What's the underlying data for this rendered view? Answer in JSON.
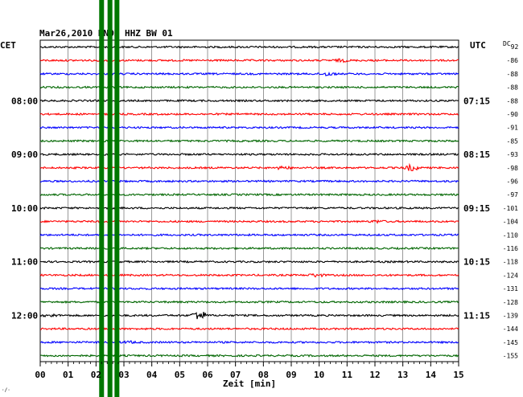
{
  "header": {
    "title": "Mar26,2010   RNON HHZ BW 01",
    "left_tz": "CET",
    "right_tz": "UTC",
    "dc_label": "DC",
    "dc_first": "92"
  },
  "xaxis": {
    "label": "Zeit [min]",
    "ticks": [
      "00",
      "01",
      "02",
      "03",
      "04",
      "05",
      "06",
      "07",
      "08",
      "09",
      "10",
      "11",
      "12",
      "13",
      "14",
      "15"
    ]
  },
  "colors": [
    "#000000",
    "#ff0000",
    "#0000ff",
    "#006600"
  ],
  "marker_color": "#007700",
  "corner_mark": "·/·",
  "chart_data": {
    "type": "line",
    "title": "Mar26,2010   RNON HHZ BW 01",
    "xlabel": "Zeit [min]",
    "xlim": [
      0,
      15
    ],
    "trace_count": 24,
    "trace_duration_min": 15,
    "left_labels": [
      {
        "row": 4,
        "text": "08:00"
      },
      {
        "row": 8,
        "text": "09:00"
      },
      {
        "row": 12,
        "text": "10:00"
      },
      {
        "row": 16,
        "text": "11:00"
      },
      {
        "row": 20,
        "text": "12:00"
      }
    ],
    "right_labels": [
      {
        "row": 4,
        "text": "07:15"
      },
      {
        "row": 8,
        "text": "08:15"
      },
      {
        "row": 12,
        "text": "09:15"
      },
      {
        "row": 16,
        "text": "10:15"
      },
      {
        "row": 20,
        "text": "11:15"
      }
    ],
    "dc_offsets": [
      "-86",
      "-88",
      "-88",
      "-88",
      "-90",
      "-91",
      "-85",
      "-93",
      "-98",
      "-96",
      "-97",
      "-101",
      "-104",
      "-110",
      "-116",
      "-118",
      "-124",
      "-131",
      "-128",
      "-139",
      "-144",
      "-145",
      "-155"
    ],
    "events": [
      {
        "row": 1,
        "minute": 10.8,
        "amp": 0.35
      },
      {
        "row": 2,
        "minute": 10.3,
        "amp": 0.55
      },
      {
        "row": 9,
        "minute": 8.7,
        "amp": 0.4
      },
      {
        "row": 9,
        "minute": 13.3,
        "amp": 0.9
      },
      {
        "row": 13,
        "minute": 12.1,
        "amp": 0.3
      },
      {
        "row": 17,
        "minute": 9.9,
        "amp": 0.45
      },
      {
        "row": 20,
        "minute": 5.7,
        "amp": 1.6
      },
      {
        "row": 20,
        "minute": 0.4,
        "amp": 0.35
      },
      {
        "row": 22,
        "minute": 3.2,
        "amp": 0.25
      }
    ],
    "marker_minutes": [
      2.2,
      2.5,
      2.75
    ]
  }
}
